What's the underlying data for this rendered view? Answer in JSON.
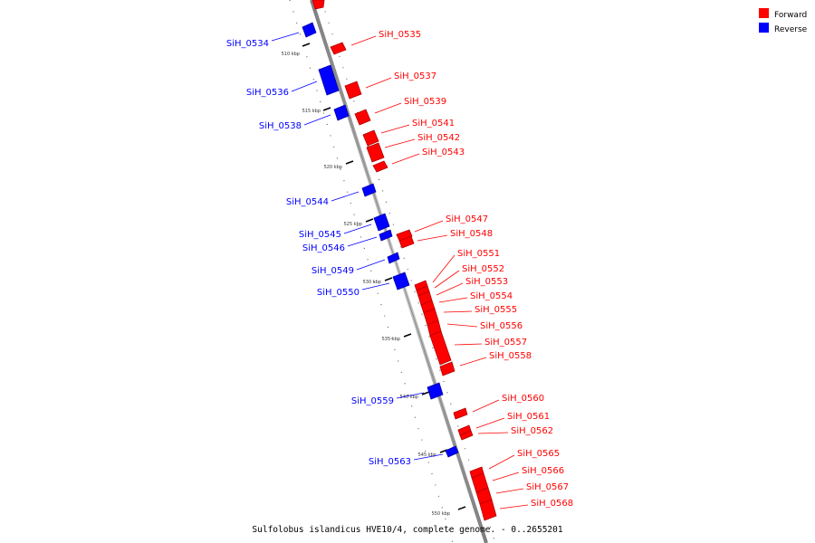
{
  "legend": {
    "forward": {
      "label": "Forward",
      "color": "#ff0000"
    },
    "reverse": {
      "label": "Reverse",
      "color": "#0000ff"
    }
  },
  "caption": "Sulfolobus islandicus HVE10/4, complete genome. - 0..2655201",
  "ticks": [
    "510 kbp",
    "515 kbp",
    "520 kbp",
    "525 kbp",
    "530 kbp",
    "535 kbp",
    "540 kbp",
    "545 kbp",
    "550 kbp"
  ],
  "genes_forward": [
    "SiH_0535",
    "SiH_0537",
    "SiH_0539",
    "SiH_0541",
    "SiH_0542",
    "SiH_0543",
    "SiH_0547",
    "SiH_0548",
    "SiH_0551",
    "SiH_0552",
    "SiH_0553",
    "SiH_0554",
    "SiH_0555",
    "SiH_0556",
    "SiH_0557",
    "SiH_0558",
    "SiH_0560",
    "SiH_0561",
    "SiH_0562",
    "SiH_0565",
    "SiH_0566",
    "SiH_0567",
    "SiH_0568"
  ],
  "genes_reverse": [
    "SiH_0534",
    "SiH_0536",
    "SiH_0538",
    "SiH_0544",
    "SiH_0545",
    "SiH_0546",
    "SiH_0549",
    "SiH_0550",
    "SiH_0559",
    "SiH_0563"
  ]
}
